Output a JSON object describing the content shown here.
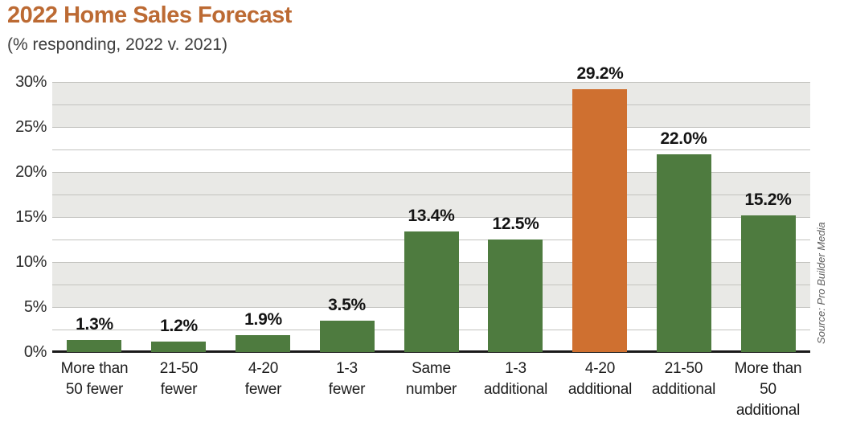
{
  "header": {
    "title": "2022 Home Sales Forecast",
    "subtitle": "(% responding, 2022 v. 2021)"
  },
  "source_note": "Source: Pro Builder Media",
  "colors": {
    "title_text": "#bc6a33",
    "bar_default": "#4e7b3f",
    "bar_highlight": "#cf7030",
    "band_gray": "#e9e9e6",
    "band_white": "#ffffff",
    "gridline": "#c3c3bf",
    "axis_line": "#1a1a1a"
  },
  "chart_data": {
    "type": "bar",
    "title": "2022 Home Sales Forecast",
    "subtitle": "(% responding, 2022 v. 2021)",
    "categories": [
      "More than 50 fewer",
      "21-50 fewer",
      "4-20 fewer",
      "1-3 fewer",
      "Same number",
      "1-3 additional",
      "4-20 additional",
      "21-50 additional",
      "More than 50 additional"
    ],
    "category_lines": [
      [
        "More than",
        "50 fewer"
      ],
      [
        "21-50",
        "fewer"
      ],
      [
        "4-20",
        "fewer"
      ],
      [
        "1-3",
        "fewer"
      ],
      [
        "Same",
        "number"
      ],
      [
        "1-3",
        "additional"
      ],
      [
        "4-20",
        "additional"
      ],
      [
        "21-50",
        "additional"
      ],
      [
        "More than",
        "50",
        "additional"
      ]
    ],
    "values": [
      1.3,
      1.2,
      1.9,
      3.5,
      13.4,
      12.5,
      29.2,
      22.0,
      15.2
    ],
    "value_labels": [
      "1.3%",
      "1.2%",
      "1.9%",
      "3.5%",
      "13.4%",
      "12.5%",
      "29.2%",
      "22.0%",
      "15.2%"
    ],
    "highlight_index": 6,
    "xlabel": "",
    "ylabel": "",
    "ylim": [
      0,
      30
    ],
    "y_major_step": 5,
    "y_minor_step": 2.5,
    "y_tick_labels": [
      "0%",
      "5%",
      "10%",
      "15%",
      "20%",
      "25%",
      "30%"
    ],
    "grid": true,
    "banded_background": true,
    "legend_position": "none"
  }
}
